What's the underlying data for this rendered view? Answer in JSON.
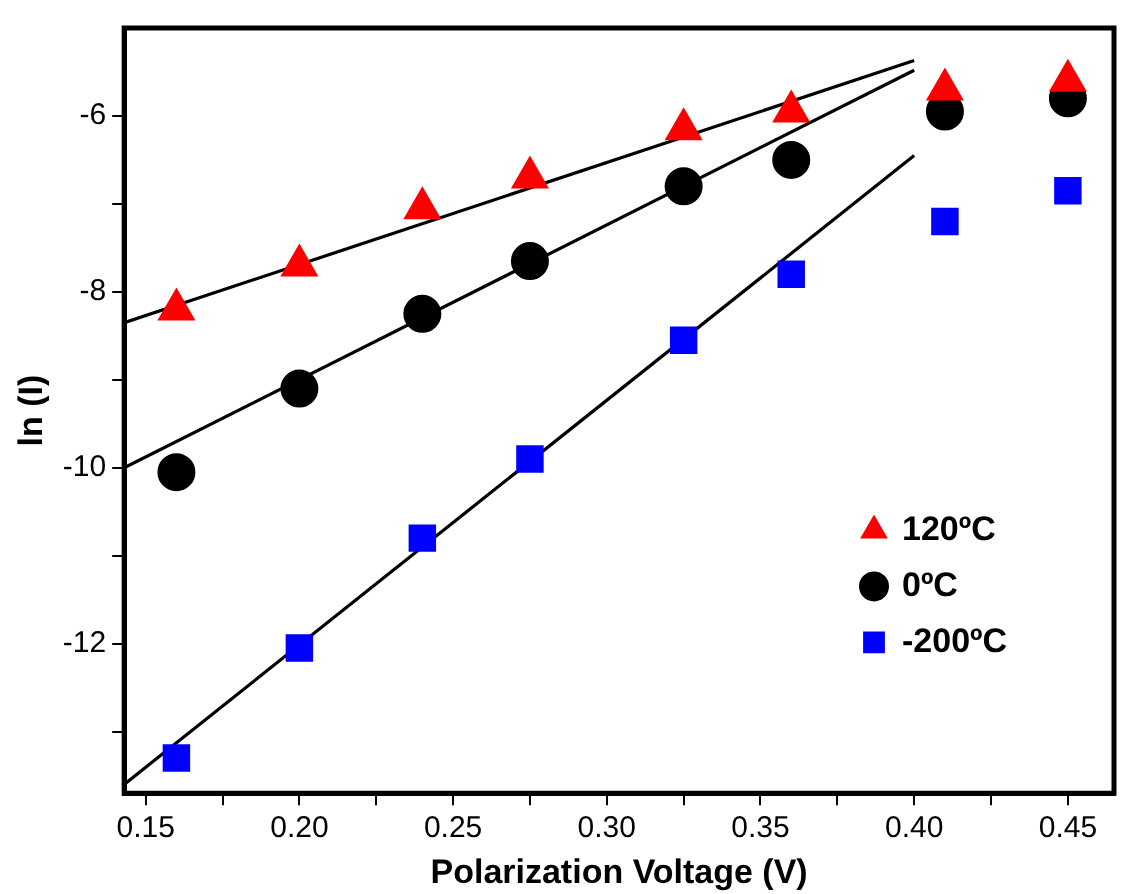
{
  "chart_data": {
    "type": "scatter",
    "xlabel": "Polarization Voltage (V)",
    "ylabel": "ln (I)",
    "xlim": [
      0.143,
      0.465
    ],
    "ylim": [
      -13.7,
      -5.0
    ],
    "xticks": [
      0.15,
      {
        "value": 0.175,
        "label": null
      },
      "0.20",
      {
        "value": 0.225,
        "label": null
      },
      0.25,
      {
        "value": 0.275,
        "label": null
      },
      "0.30",
      {
        "value": 0.325,
        "label": null
      },
      0.35,
      {
        "value": 0.375,
        "label": null
      },
      "0.40",
      {
        "value": 0.425,
        "label": null
      },
      0.45
    ],
    "yticks": [
      {
        "value": -13,
        "label": null
      },
      -12,
      {
        "value": -11,
        "label": null
      },
      -10,
      {
        "value": -9,
        "label": null
      },
      -8,
      {
        "value": -7,
        "label": null
      },
      -6
    ],
    "grid": false,
    "legend": "right",
    "series": [
      {
        "name": "120ºC",
        "color": "#ff0000",
        "marker": "triangle",
        "x": [
          0.16,
          0.2,
          0.24,
          0.275,
          0.325,
          0.36,
          0.41,
          0.45
        ],
        "values": [
          -8.2,
          -7.7,
          -7.05,
          -6.7,
          -6.15,
          -5.95,
          -5.7,
          -5.6
        ]
      },
      {
        "name": "0ºC",
        "color": "#000000",
        "marker": "circle",
        "x": [
          0.16,
          0.2,
          0.24,
          0.275,
          0.325,
          0.36,
          0.41,
          0.45
        ],
        "values": [
          -10.05,
          -9.1,
          -8.25,
          -7.65,
          -6.8,
          -6.5,
          -5.95,
          -5.8
        ]
      },
      {
        "name": "-200ºC",
        "color": "#0000ff",
        "marker": "square",
        "x": [
          0.16,
          0.2,
          0.24,
          0.275,
          0.325,
          0.36,
          0.41,
          0.45
        ],
        "values": [
          -13.3,
          -12.05,
          -10.8,
          -9.9,
          -8.55,
          -7.8,
          -7.2,
          -6.85
        ]
      },
      {
        "type": "line",
        "color": "#000000",
        "marker": "none",
        "x": [
          0.143,
          0.4
        ],
        "values": [
          -8.35,
          -5.37
        ]
      },
      {
        "type": "line",
        "color": "#000000",
        "marker": "none",
        "x": [
          0.143,
          0.4
        ],
        "values": [
          -10.0,
          -5.48
        ]
      },
      {
        "type": "line",
        "color": "#000000",
        "marker": "none",
        "x": [
          0.143,
          0.4
        ],
        "values": [
          -13.6,
          -6.45
        ]
      }
    ]
  }
}
